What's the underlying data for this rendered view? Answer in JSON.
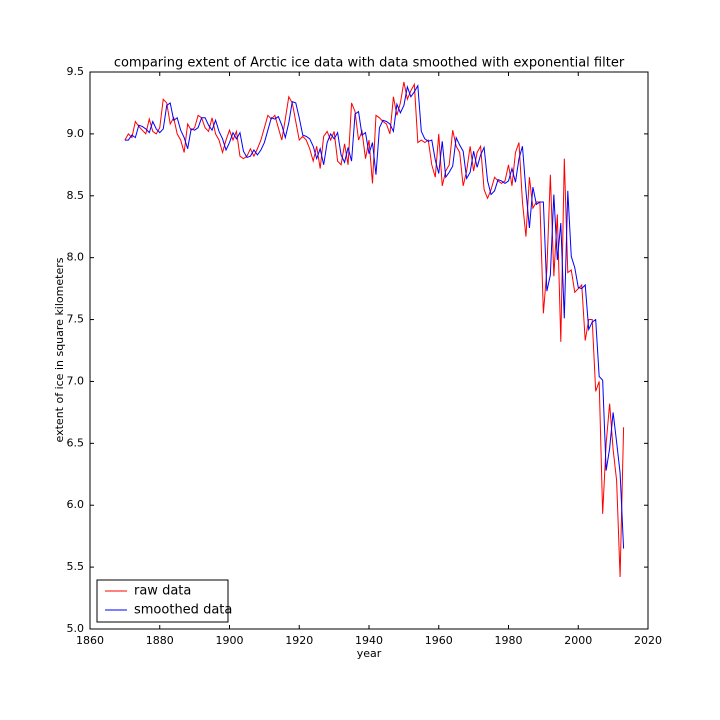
{
  "chart_data": {
    "type": "line",
    "title": "comparing extent of Arctic ice data with data smoothed with exponential filter",
    "xlabel": "year",
    "ylabel": "extent of ice in square kilometers",
    "x": [
      1870,
      1871,
      1872,
      1873,
      1874,
      1875,
      1876,
      1877,
      1878,
      1879,
      1880,
      1881,
      1882,
      1883,
      1884,
      1885,
      1886,
      1887,
      1888,
      1889,
      1890,
      1891,
      1892,
      1893,
      1894,
      1895,
      1896,
      1897,
      1898,
      1899,
      1900,
      1901,
      1902,
      1903,
      1904,
      1905,
      1906,
      1907,
      1908,
      1909,
      1910,
      1911,
      1912,
      1913,
      1914,
      1915,
      1916,
      1917,
      1918,
      1919,
      1920,
      1921,
      1922,
      1923,
      1924,
      1925,
      1926,
      1927,
      1928,
      1929,
      1930,
      1931,
      1932,
      1933,
      1934,
      1935,
      1936,
      1937,
      1938,
      1939,
      1940,
      1941,
      1942,
      1943,
      1944,
      1945,
      1946,
      1947,
      1948,
      1949,
      1950,
      1951,
      1952,
      1953,
      1954,
      1955,
      1956,
      1957,
      1958,
      1959,
      1960,
      1961,
      1962,
      1963,
      1964,
      1965,
      1966,
      1967,
      1968,
      1969,
      1970,
      1971,
      1972,
      1973,
      1974,
      1975,
      1976,
      1977,
      1978,
      1979,
      1980,
      1981,
      1982,
      1983,
      1984,
      1985,
      1986,
      1987,
      1988,
      1989,
      1990,
      1991,
      1992,
      1993,
      1994,
      1995,
      1996,
      1997,
      1998,
      1999,
      2000,
      2001,
      2002,
      2003,
      2004,
      2005,
      2006,
      2007,
      2008,
      2009,
      2010,
      2011,
      2012,
      2013
    ],
    "series": [
      {
        "name": "raw data",
        "color": "#ff0000",
        "values": [
          8.95,
          9.0,
          8.97,
          9.1,
          9.06,
          9.03,
          9.0,
          9.12,
          9.02,
          9.0,
          9.05,
          9.28,
          9.25,
          9.08,
          9.13,
          9.0,
          8.95,
          8.85,
          9.08,
          9.03,
          9.05,
          9.15,
          9.13,
          9.05,
          9.02,
          9.13,
          9.0,
          8.95,
          8.85,
          8.95,
          9.03,
          8.95,
          9.02,
          8.82,
          8.8,
          8.82,
          8.88,
          8.82,
          8.88,
          8.95,
          9.05,
          9.15,
          9.12,
          9.15,
          9.05,
          8.95,
          9.12,
          9.3,
          9.25,
          9.1,
          8.95,
          8.98,
          8.95,
          8.88,
          8.78,
          8.9,
          8.72,
          8.98,
          9.02,
          8.95,
          9.02,
          8.78,
          8.75,
          8.92,
          8.75,
          9.25,
          9.18,
          8.95,
          9.02,
          8.8,
          8.95,
          8.6,
          9.15,
          9.13,
          9.1,
          9.08,
          9.0,
          9.3,
          9.15,
          9.25,
          9.42,
          9.28,
          9.35,
          9.4,
          8.93,
          8.95,
          8.93,
          8.95,
          8.75,
          8.65,
          9.0,
          8.58,
          8.7,
          8.75,
          9.03,
          8.9,
          8.85,
          8.58,
          8.7,
          8.9,
          8.7,
          8.85,
          8.9,
          8.55,
          8.48,
          8.55,
          8.65,
          8.62,
          8.6,
          8.62,
          8.75,
          8.58,
          8.85,
          8.93,
          8.45,
          8.17,
          8.65,
          8.4,
          8.45,
          8.45,
          7.55,
          7.9,
          8.67,
          7.85,
          8.35,
          7.32,
          8.8,
          7.88,
          7.9,
          7.72,
          7.75,
          7.78,
          7.33,
          7.5,
          7.5,
          6.92,
          7.0,
          5.93,
          6.5,
          6.82,
          6.45,
          6.2,
          5.42,
          6.63
        ]
      },
      {
        "name": "smoothed data",
        "color": "#0000ff",
        "values": [
          8.95,
          8.95,
          8.99,
          8.97,
          9.07,
          9.06,
          9.04,
          9.01,
          9.1,
          9.04,
          9.01,
          9.04,
          9.23,
          9.25,
          9.11,
          9.13,
          9.03,
          8.97,
          8.88,
          9.04,
          9.03,
          9.05,
          9.13,
          9.13,
          9.07,
          9.03,
          9.11,
          9.02,
          8.96,
          8.87,
          8.93,
          9.01,
          8.96,
          9.01,
          8.86,
          8.81,
          8.82,
          8.87,
          8.83,
          8.87,
          8.93,
          9.03,
          9.13,
          9.12,
          9.14,
          9.07,
          8.97,
          9.09,
          9.26,
          9.25,
          9.13,
          8.99,
          8.98,
          8.96,
          8.9,
          8.8,
          8.88,
          8.75,
          8.93,
          9.0,
          8.96,
          9.01,
          8.83,
          8.77,
          8.89,
          8.78,
          9.16,
          9.18,
          8.99,
          9.01,
          8.84,
          8.93,
          8.67,
          9.05,
          9.11,
          9.1,
          9.08,
          9.02,
          9.24,
          9.17,
          9.23,
          9.38,
          9.3,
          9.34,
          9.39,
          9.02,
          8.96,
          8.94,
          8.95,
          8.79,
          8.68,
          8.94,
          8.65,
          8.69,
          8.74,
          8.97,
          8.91,
          8.86,
          8.64,
          8.69,
          8.86,
          8.73,
          8.83,
          8.89,
          8.62,
          8.51,
          8.54,
          8.63,
          8.62,
          8.6,
          8.62,
          8.72,
          8.61,
          8.8,
          8.9,
          8.54,
          8.24,
          8.57,
          8.43,
          8.45,
          8.45,
          7.73,
          7.86,
          8.51,
          7.98,
          8.28,
          7.51,
          8.54,
          8.01,
          7.92,
          7.76,
          7.75,
          7.78,
          7.42,
          7.48,
          7.5,
          7.04,
          7.01,
          6.28,
          6.46,
          6.75,
          6.51,
          6.26,
          5.65
        ]
      }
    ],
    "xlim": [
      1860,
      2020
    ],
    "xticks": [
      1860,
      1880,
      1900,
      1920,
      1940,
      1960,
      1980,
      2000,
      2020
    ],
    "ylim": [
      5.0,
      9.5
    ],
    "yticks": [
      {
        "value": 5.0,
        "label": "5.0"
      },
      5.5,
      {
        "value": 6.0,
        "label": "6.0"
      },
      6.5,
      {
        "value": 7.0,
        "label": "7.0"
      },
      7.5,
      {
        "value": 8.0,
        "label": "8.0"
      },
      8.5,
      {
        "value": 9.0,
        "label": "9.0"
      },
      9.5
    ],
    "legend": "lower left",
    "grid": false
  }
}
